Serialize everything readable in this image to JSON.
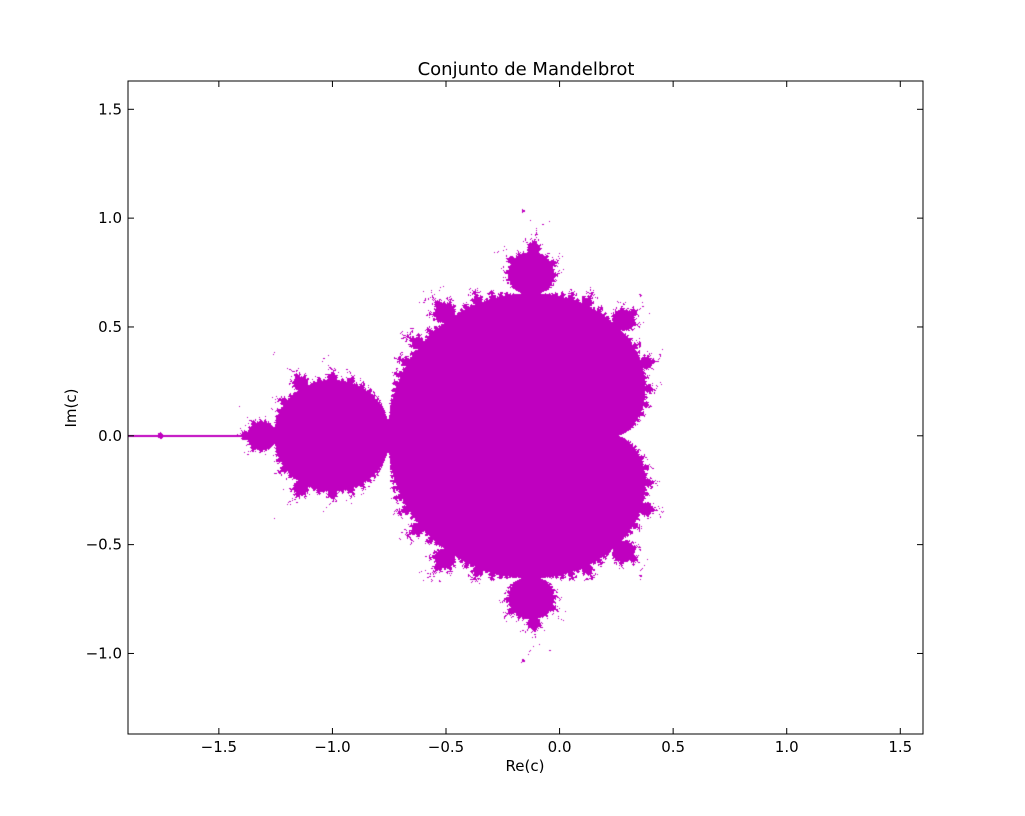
{
  "chart_data": {
    "type": "scatter",
    "title": "Conjunto de Mandelbrot",
    "xlabel": "Re(c)",
    "ylabel": "Im(c)",
    "xlim": [
      -1.9,
      1.6
    ],
    "ylim": [
      -1.37,
      1.63
    ],
    "xticks": [
      -1.5,
      -1.0,
      -0.5,
      0.0,
      0.5,
      1.0,
      1.5
    ],
    "xtick_labels": [
      "−1.5",
      "−1.0",
      "−0.5",
      "0.0",
      "0.5",
      "1.0",
      "1.5"
    ],
    "yticks": [
      -1.0,
      -0.5,
      0.0,
      0.5,
      1.0,
      1.5
    ],
    "ytick_labels": [
      "−1.0",
      "−0.5",
      "0.0",
      "0.5",
      "1.0",
      "1.5"
    ],
    "grid": false,
    "color": "#bf00bf",
    "series": [
      {
        "description_region": "Mandelbrot set",
        "x_range": [
          -2.0,
          0.47
        ],
        "y_range": [
          -1.0,
          1.0
        ],
        "max_iterations": 40
      }
    ]
  }
}
